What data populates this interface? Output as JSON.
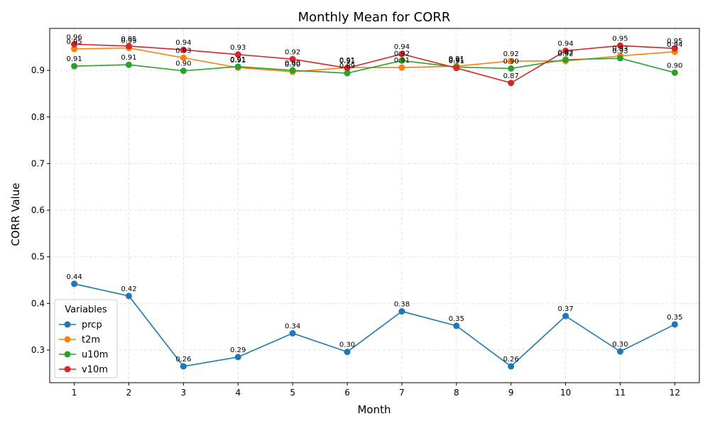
{
  "chart_data": {
    "type": "line",
    "title": "Monthly Mean for CORR",
    "xlabel": "Month",
    "ylabel": "CORR Value",
    "x": [
      1,
      2,
      3,
      4,
      5,
      6,
      7,
      8,
      9,
      10,
      11,
      12
    ],
    "ylim": [
      0.23,
      0.99
    ],
    "yticks": [
      0.3,
      0.4,
      0.5,
      0.6,
      0.7,
      0.8,
      0.9
    ],
    "grid": true,
    "legend": {
      "title": "Variables",
      "placement": "lower-left"
    },
    "series": [
      {
        "name": "prcp",
        "color": "#1f77b4",
        "values": [
          0.442,
          0.416,
          0.265,
          0.285,
          0.336,
          0.296,
          0.383,
          0.352,
          0.265,
          0.373,
          0.297,
          0.355
        ],
        "labels": [
          "0.44",
          "0.42",
          "0.26",
          "0.29",
          "0.34",
          "0.30",
          "0.38",
          "0.35",
          "0.26",
          "0.37",
          "0.30",
          "0.35"
        ]
      },
      {
        "name": "t2m",
        "color": "#ff7f0e",
        "values": [
          0.946,
          0.948,
          0.927,
          0.906,
          0.897,
          0.906,
          0.906,
          0.909,
          0.92,
          0.92,
          0.931,
          0.94
        ],
        "labels": [
          "0.95",
          "0.95",
          "0.93",
          "0.91",
          "0.90",
          "0.91",
          "0.91",
          "0.91",
          "0.92",
          "0.92",
          "0.93",
          "0.94"
        ]
      },
      {
        "name": "u10m",
        "color": "#2ca02c",
        "values": [
          0.909,
          0.912,
          0.899,
          0.908,
          0.9,
          0.894,
          0.921,
          0.907,
          0.904,
          0.923,
          0.926,
          0.895
        ],
        "labels": [
          "0.91",
          "0.91",
          "0.90",
          "0.91",
          "0.90",
          "0.89",
          "0.92",
          "0.91",
          "0.90",
          "0.92",
          "0.93",
          "0.90"
        ]
      },
      {
        "name": "v10m",
        "color": "#d62728",
        "values": [
          0.956,
          0.952,
          0.944,
          0.934,
          0.924,
          0.905,
          0.935,
          0.905,
          0.873,
          0.942,
          0.953,
          0.947
        ],
        "labels": [
          "0.96",
          "0.95",
          "0.94",
          "0.93",
          "0.92",
          "0.91",
          "0.94",
          "0.91",
          "0.87",
          "0.94",
          "0.95",
          "0.95"
        ]
      }
    ]
  }
}
